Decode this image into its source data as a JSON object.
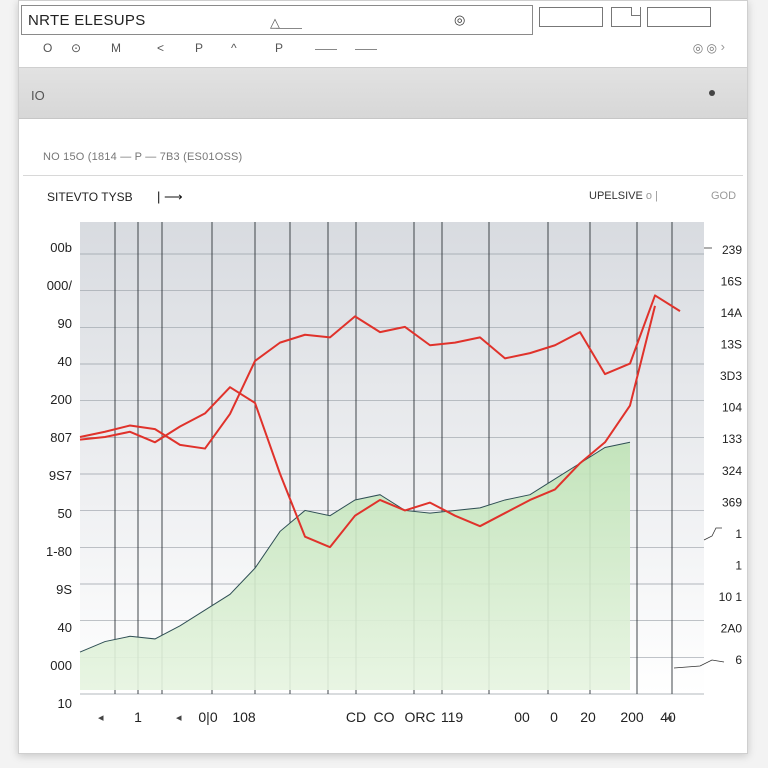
{
  "window": {
    "title": "NRTE ELESUPS",
    "toolbar": [
      "O",
      "M",
      "<",
      "P",
      "^",
      "P"
    ],
    "toolbar_right": "◎ ◎",
    "strip_left": "IO",
    "info": "NO 15O (1814 — P — 7B3 (ES01OSS)",
    "subtitle_left": "SITEVTO TYSB",
    "subtitle_right": "UPELSIVE",
    "subtitle_right2": "GOD"
  },
  "colors": {
    "price_line": "#e0322b",
    "area_fill": "#bfe3b6",
    "area_line": "#2f4f55"
  },
  "chart_data": {
    "type": "line",
    "left_tick_labels": [
      "00b",
      "000/",
      "90",
      "40",
      "200",
      "807",
      "9S7",
      "50",
      "1-80",
      "9S",
      "40",
      "000",
      "10"
    ],
    "right_tick_labels": [
      "239",
      "16S",
      "14A",
      "13S",
      "3D3",
      "104",
      "133",
      "324",
      "369",
      "1",
      "1",
      "10 1",
      "2A0",
      "6"
    ],
    "bottom_tick_labels": [
      "1",
      "0|0",
      "108",
      "CD",
      "CO",
      "ORC",
      "119",
      "00",
      "0",
      "20",
      "200",
      "40"
    ],
    "series": [
      {
        "values": [
          [
            0,
            -0.1
          ],
          [
            1,
            0.0
          ],
          [
            2,
            0.12
          ],
          [
            3,
            0.05
          ],
          [
            4,
            -0.25
          ],
          [
            5,
            -0.32
          ],
          [
            6,
            0.34
          ],
          [
            7,
            1.35
          ],
          [
            8,
            1.7
          ],
          [
            9,
            1.85
          ],
          [
            10,
            1.8
          ],
          [
            11,
            2.2
          ],
          [
            12,
            1.9
          ],
          [
            13,
            2.0
          ],
          [
            14,
            1.65
          ],
          [
            15,
            1.7
          ],
          [
            16,
            1.8
          ],
          [
            17,
            1.4
          ],
          [
            18,
            1.5
          ],
          [
            19,
            1.65
          ],
          [
            20,
            1.9
          ],
          [
            21,
            1.1
          ],
          [
            22,
            1.3
          ],
          [
            23,
            2.6
          ],
          [
            24,
            2.3
          ]
        ]
      },
      {
        "values": [
          [
            0,
            -0.15
          ],
          [
            1,
            -0.1
          ],
          [
            2,
            0.0
          ],
          [
            3,
            -0.2
          ],
          [
            4,
            0.1
          ],
          [
            5,
            0.35
          ],
          [
            6,
            0.85
          ],
          [
            7,
            0.55
          ],
          [
            8,
            -0.8
          ],
          [
            9,
            -2.0
          ],
          [
            10,
            -2.2
          ],
          [
            11,
            -1.6
          ],
          [
            12,
            -1.3
          ],
          [
            13,
            -1.5
          ],
          [
            14,
            -1.35
          ],
          [
            15,
            -1.6
          ],
          [
            16,
            -1.8
          ],
          [
            17,
            -1.55
          ],
          [
            18,
            -1.3
          ],
          [
            19,
            -1.1
          ],
          [
            20,
            -0.6
          ],
          [
            21,
            -0.2
          ],
          [
            22,
            0.5
          ],
          [
            23,
            2.4
          ]
        ]
      },
      {
        "values": [
          [
            0,
            -4.2
          ],
          [
            1,
            -4.0
          ],
          [
            2,
            -3.9
          ],
          [
            3,
            -3.95
          ],
          [
            4,
            -3.7
          ],
          [
            5,
            -3.4
          ],
          [
            6,
            -3.1
          ],
          [
            7,
            -2.6
          ],
          [
            8,
            -1.9
          ],
          [
            9,
            -1.5
          ],
          [
            10,
            -1.6
          ],
          [
            11,
            -1.3
          ],
          [
            12,
            -1.2
          ],
          [
            13,
            -1.5
          ],
          [
            14,
            -1.55
          ],
          [
            15,
            -1.5
          ],
          [
            16,
            -1.45
          ],
          [
            17,
            -1.3
          ],
          [
            18,
            -1.2
          ],
          [
            19,
            -0.9
          ],
          [
            20,
            -0.6
          ],
          [
            21,
            -0.3
          ],
          [
            22,
            -0.2
          ]
        ]
      }
    ],
    "ylim": [
      -5,
      4
    ]
  }
}
